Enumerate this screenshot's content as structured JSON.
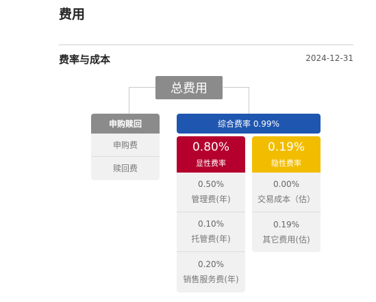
{
  "page_title": "费用",
  "section": {
    "title": "费率与成本",
    "date": "2024-12-31"
  },
  "total": {
    "label": "总费用"
  },
  "purchase_redeem": {
    "header": "申购赎回",
    "items": [
      {
        "label": "申购费"
      },
      {
        "label": "赎回费"
      }
    ]
  },
  "comprehensive": {
    "label": "综合费率 0.99%"
  },
  "explicit": {
    "value": "0.80%",
    "label": "显性费率",
    "items": [
      {
        "value": "0.50%",
        "label": "管理费(年)"
      },
      {
        "value": "0.10%",
        "label": "托管费(年)"
      },
      {
        "value": "0.20%",
        "label": "销售服务费(年)"
      }
    ]
  },
  "implicit": {
    "value": "0.19%",
    "label": "隐性费率",
    "items": [
      {
        "value": "0.00%",
        "label": "交易成本（估）"
      },
      {
        "value": "0.19%",
        "label": "其它费用(估)"
      }
    ]
  },
  "colors": {
    "gray_header": "#8b8b8b",
    "blue": "#1f56b0",
    "red": "#b5002e",
    "yellow": "#f2bd00"
  }
}
